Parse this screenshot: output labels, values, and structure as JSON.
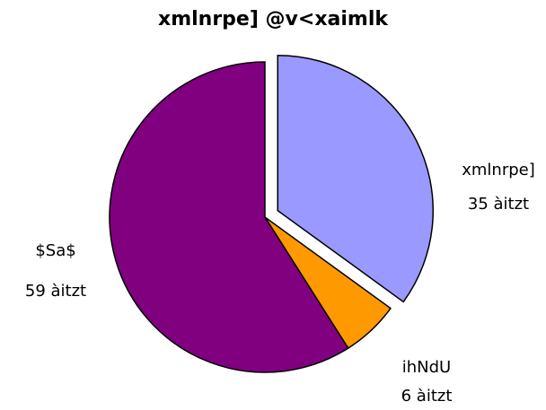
{
  "chart_data": {
    "type": "pie",
    "title": "xmlnrpe] @v<xaimlk",
    "categories": [
      "xmlnrpe]",
      "ihNdU",
      "$Sa$"
    ],
    "values": [
      35,
      6,
      59
    ],
    "value_labels": [
      "35 àitzt",
      "6 àitzt",
      "59 àitzt"
    ],
    "colors": [
      "#9999ff",
      "#ff9900",
      "#800080"
    ],
    "exploded": [
      true,
      false,
      false
    ]
  }
}
